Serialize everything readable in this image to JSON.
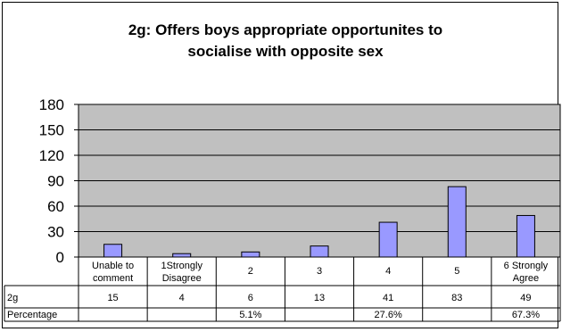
{
  "chart_data": {
    "type": "bar",
    "title_line1": "2g: Offers boys appropriate opportunites to",
    "title_line2": "socialise with opposite sex",
    "categories": [
      [
        "Unable to",
        "comment"
      ],
      [
        "1Strongly",
        "Disagree"
      ],
      [
        "2"
      ],
      [
        "3"
      ],
      [
        "4"
      ],
      [
        "5"
      ],
      [
        "6 Strongly",
        "Agree"
      ]
    ],
    "series": [
      {
        "values": [
          15,
          4,
          6,
          13,
          41,
          83,
          49
        ]
      }
    ],
    "ylim": [
      0,
      180
    ],
    "yticks": [
      "0",
      "30",
      "60",
      "90",
      "120",
      "150",
      "180"
    ],
    "grid": true,
    "table": {
      "rows": [
        {
          "label": "2g",
          "cells": [
            "15",
            "4",
            "6",
            "13",
            "41",
            "83",
            "49"
          ]
        },
        {
          "label": "Percentage",
          "cells": [
            "",
            "",
            "5.1%",
            "",
            "27.6%",
            "",
            "67.3%"
          ]
        }
      ]
    },
    "colors": {
      "plot_bg": "#c0c0c0",
      "bar_fill": "#9999ff",
      "bar_stroke": "#000000",
      "grid": "#000000"
    }
  }
}
